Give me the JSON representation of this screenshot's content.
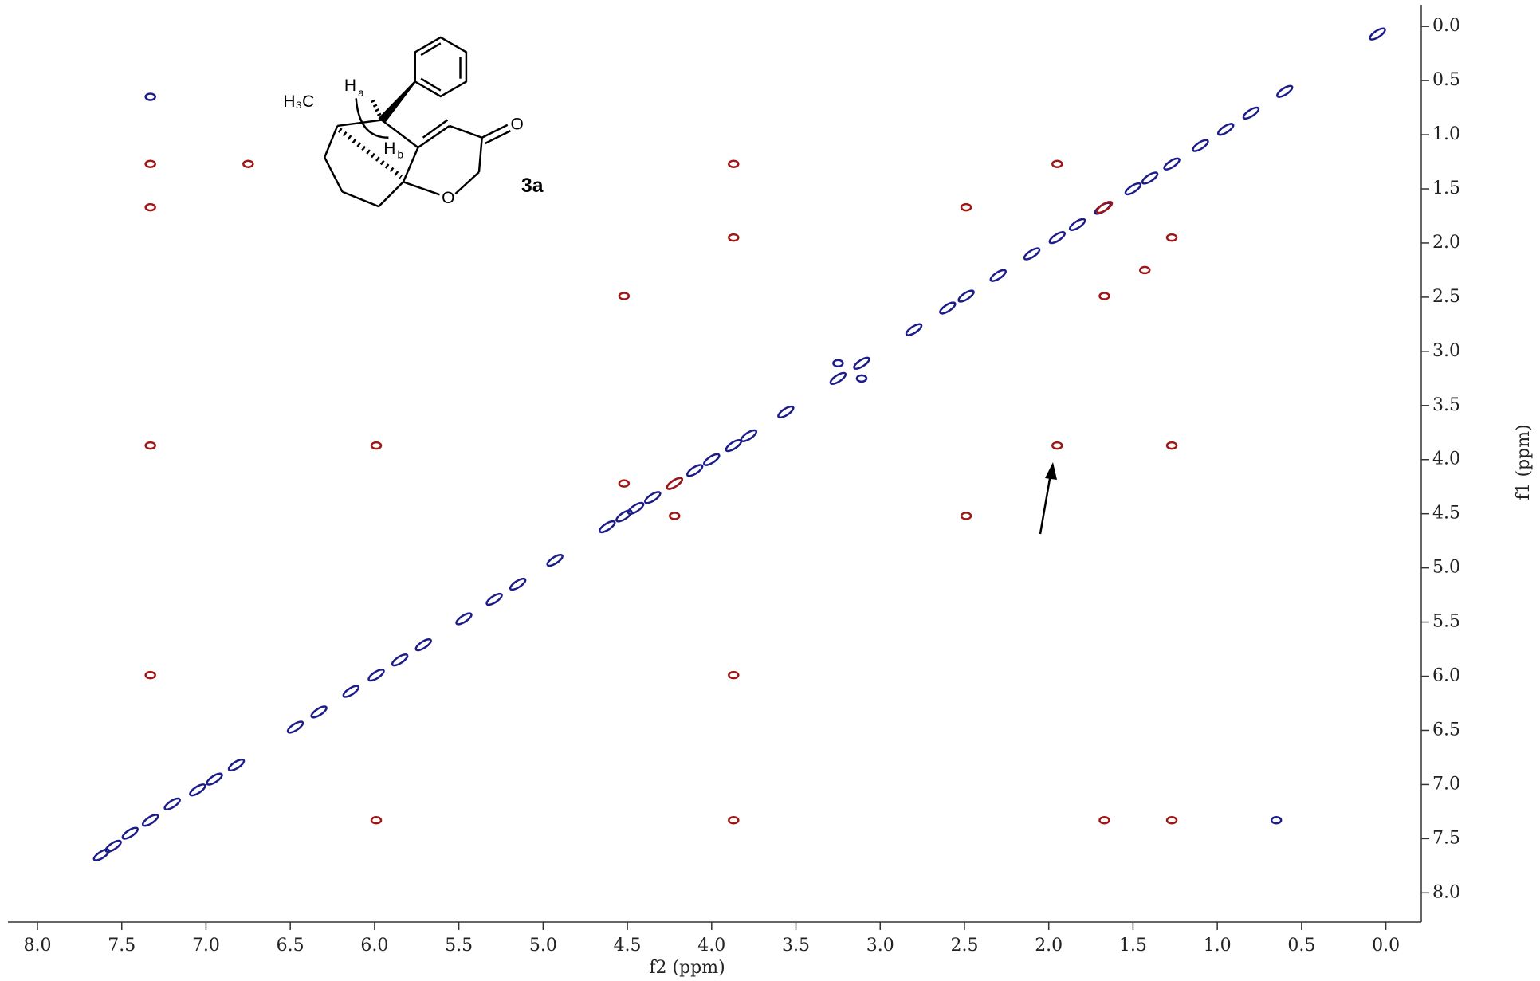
{
  "chart_data": {
    "type": "scatter",
    "x_label": "f2 (ppm)",
    "y_label": "f1 (ppm)",
    "xlim": [
      8.175,
      -0.21
    ],
    "ylim": [
      -0.2,
      8.27
    ],
    "xticks": [
      {
        "value": 8,
        "label": "8.0"
      },
      7.5,
      {
        "value": 7,
        "label": "7.0"
      },
      6.5,
      {
        "value": 6,
        "label": "6.0"
      },
      5.5,
      {
        "value": 5,
        "label": "5.0"
      },
      4.5,
      {
        "value": 4,
        "label": "4.0"
      },
      3.5,
      {
        "value": 3,
        "label": "3.0"
      },
      2.5,
      {
        "value": 2,
        "label": "2.0"
      },
      1.5,
      {
        "value": 1,
        "label": "1.0"
      },
      0.5,
      {
        "value": 0,
        "label": "0.0"
      }
    ],
    "yticks": [
      {
        "value": 0,
        "label": "0.0"
      },
      0.5,
      {
        "value": 1,
        "label": "1.0"
      },
      1.5,
      {
        "value": 2,
        "label": "2.0"
      },
      2.5,
      {
        "value": 3,
        "label": "3.0"
      },
      3.5,
      {
        "value": 4,
        "label": "4.0"
      },
      4.5,
      {
        "value": 5,
        "label": "5.0"
      },
      5.5,
      {
        "value": 6,
        "label": "6.0"
      },
      6.5,
      {
        "value": 7,
        "label": "7.0"
      },
      7.5,
      {
        "value": 8,
        "label": "8.0"
      }
    ],
    "series": [
      {
        "color": "#1c1c8a",
        "x": [
          7.62,
          7.55,
          7.45,
          7.33,
          7.2,
          7.05,
          6.95,
          6.82,
          6.47,
          6.33,
          6.14,
          5.99,
          5.85,
          5.71,
          5.47,
          5.29,
          5.15,
          4.93,
          4.62,
          4.52,
          4.45,
          4.35,
          4.22,
          4.1,
          4.0,
          3.87,
          3.78,
          3.56,
          3.25,
          3.11,
          2.8,
          2.6,
          2.49,
          2.3,
          2.1,
          1.95,
          1.83,
          1.68,
          1.5,
          1.4,
          1.27,
          1.1,
          0.95,
          0.8,
          0.6,
          0.05,
          7.33,
          0.65,
          3.25,
          3.11
        ],
        "y": [
          7.65,
          7.57,
          7.45,
          7.33,
          7.18,
          7.05,
          6.95,
          6.82,
          6.47,
          6.33,
          6.14,
          5.99,
          5.85,
          5.71,
          5.47,
          5.29,
          5.15,
          4.93,
          4.62,
          4.52,
          4.45,
          4.35,
          4.22,
          4.1,
          4.0,
          3.87,
          3.78,
          3.56,
          3.25,
          3.11,
          2.8,
          2.6,
          2.49,
          2.3,
          2.1,
          1.95,
          1.83,
          1.68,
          1.5,
          1.4,
          1.27,
          1.1,
          0.95,
          0.8,
          0.6,
          0.07,
          0.65,
          7.33,
          3.11,
          3.25
        ]
      },
      {
        "color": "#a01515",
        "x": [
          7.33,
          7.33,
          7.33,
          7.33,
          6.75,
          3.87,
          3.87,
          3.87,
          4.52,
          4.52,
          4.22,
          4.22,
          2.49,
          2.49,
          1.67,
          1.67,
          1.95,
          1.27,
          1.67,
          1.27,
          3.87,
          5.99,
          5.99,
          1.95,
          1.27,
          1.43
        ],
        "y": [
          1.27,
          1.67,
          3.87,
          5.99,
          1.27,
          1.27,
          1.95,
          7.33,
          2.49,
          4.22,
          4.52,
          4.22,
          4.52,
          1.67,
          2.49,
          1.67,
          3.87,
          3.87,
          7.33,
          7.33,
          5.99,
          3.87,
          7.33,
          1.27,
          1.95,
          2.25
        ]
      }
    ]
  },
  "structure": {
    "labels": [
      "H₃C",
      "H",
      "a",
      "H",
      "b",
      "O",
      "O",
      "3a"
    ]
  }
}
